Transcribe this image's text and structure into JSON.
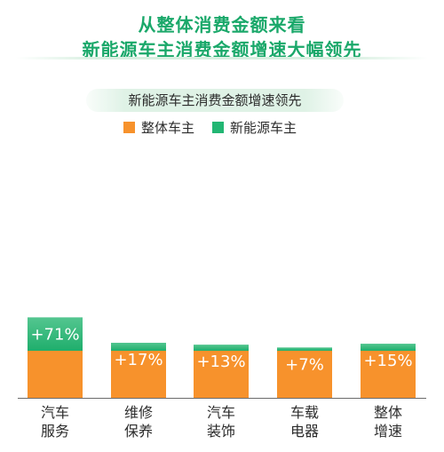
{
  "headline": {
    "line1": "从整体消费金额来看",
    "line2": "新能源车主消费金额增速大幅领先"
  },
  "colors": {
    "headline": "#1aa86a",
    "overall": "#f7922c",
    "nev": "#22b673",
    "nev_light": "#54c690"
  },
  "chart_data": {
    "type": "bar",
    "title": "新能源车主消费金额增速领先",
    "categories": [
      [
        "汽车",
        "服务"
      ],
      [
        "维修",
        "保养"
      ],
      [
        "汽车",
        "装饰"
      ],
      [
        "车载",
        "电器"
      ],
      [
        "整体",
        "增速"
      ]
    ],
    "series": [
      {
        "name": "整体车主",
        "values": [
          1,
          1,
          1,
          1,
          1
        ],
        "color": "#f7922c"
      },
      {
        "name": "新能源车主",
        "values": [
          1.71,
          1.17,
          1.13,
          1.07,
          1.15
        ],
        "color": "#22b673"
      }
    ],
    "data_labels": [
      "+71%",
      "+17%",
      "+13%",
      "+7%",
      "+15%"
    ],
    "legend_position": "top",
    "grid": false
  }
}
